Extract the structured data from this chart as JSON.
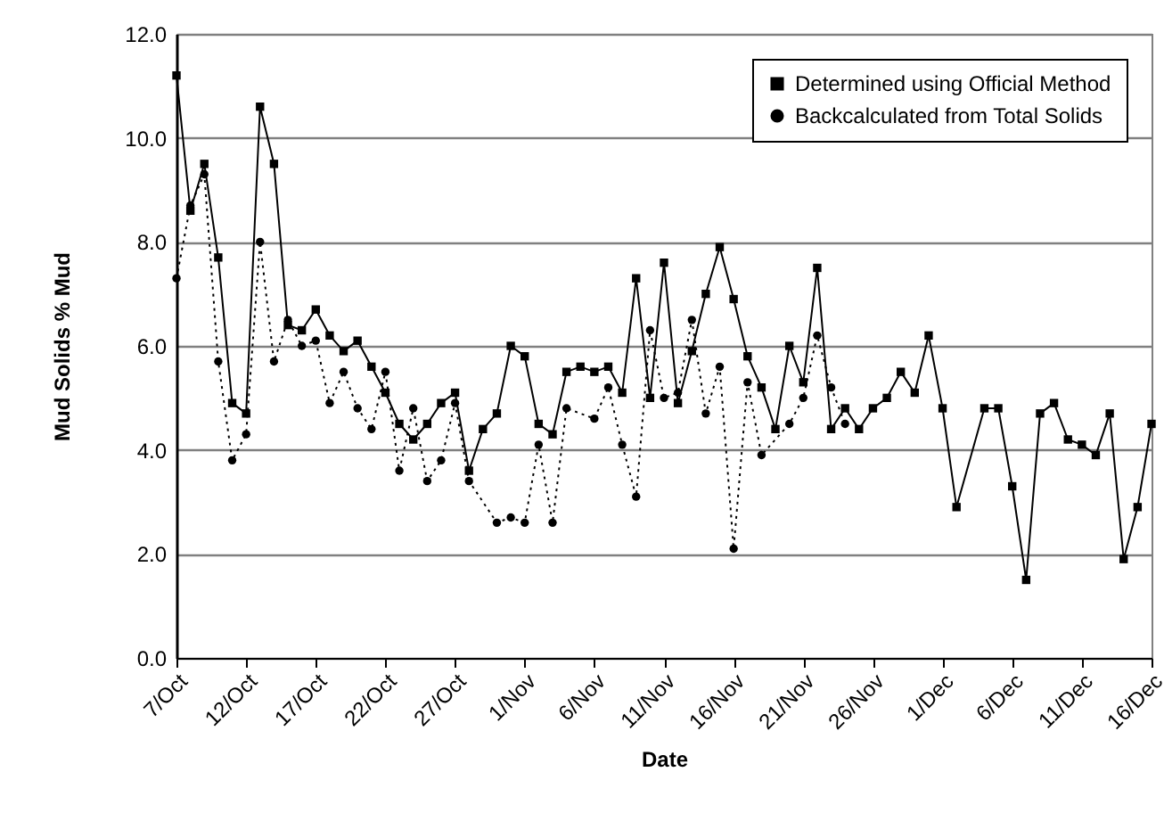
{
  "chart_data": {
    "type": "line",
    "xlabel": "Date",
    "ylabel": "Mud Solids % Mud",
    "xlim": [
      "--10-07",
      "--12-16"
    ],
    "xticks": [
      {
        "value": "--10-07",
        "label": "7/Oct"
      },
      {
        "value": "--10-12",
        "label": "12/Oct"
      },
      {
        "value": "--10-17",
        "label": "17/Oct"
      },
      {
        "value": "--10-22",
        "label": "22/Oct"
      },
      {
        "value": "--10-27",
        "label": "27/Oct"
      },
      {
        "value": "--11-01",
        "label": "1/Nov"
      },
      {
        "value": "--11-06",
        "label": "6/Nov"
      },
      {
        "value": "--11-11",
        "label": "11/Nov"
      },
      {
        "value": "--11-16",
        "label": "16/Nov"
      },
      {
        "value": "--11-21",
        "label": "21/Nov"
      },
      {
        "value": "--11-26",
        "label": "26/Nov"
      },
      {
        "value": "--12-01",
        "label": "1/Dec"
      },
      {
        "value": "--12-06",
        "label": "6/Dec"
      },
      {
        "value": "--12-11",
        "label": "11/Dec"
      },
      {
        "value": "--12-16",
        "label": "16/Dec"
      }
    ],
    "ylim": [
      0,
      12
    ],
    "yticks": [
      {
        "value": 0,
        "label": "0.0"
      },
      {
        "value": 2,
        "label": "2.0"
      },
      {
        "value": 4,
        "label": "4.0"
      },
      {
        "value": 6,
        "label": "6.0"
      },
      {
        "value": 8,
        "label": "8.0"
      },
      {
        "value": 10,
        "label": "10.0"
      },
      {
        "value": 12,
        "label": "12.0"
      }
    ],
    "grid": "y",
    "legend": "top right",
    "series": [
      {
        "name": "Determined using Official Method",
        "color": "#000000",
        "marker": "square",
        "line_style": "solid",
        "x": [
          "--10-07",
          "--10-08",
          "--10-09",
          "--10-10",
          "--10-11",
          "--10-12",
          "--10-13",
          "--10-14",
          "--10-15",
          "--10-16",
          "--10-17",
          "--10-18",
          "--10-19",
          "--10-20",
          "--10-21",
          "--10-22",
          "--10-23",
          "--10-24",
          "--10-25",
          "--10-26",
          "--10-27",
          "--10-28",
          "--10-29",
          "--10-30",
          "--10-31",
          "--11-01",
          "--11-02",
          "--11-03",
          "--11-04",
          "--11-05",
          "--11-06",
          "--11-07",
          "--11-08",
          "--11-09",
          "--11-10",
          "--11-11",
          "--11-12",
          "--11-13",
          "--11-14",
          "--11-15",
          "--11-16",
          "--11-17",
          "--11-18",
          "--11-19",
          "--11-20",
          "--11-21",
          "--11-22",
          "--11-23",
          "--11-24",
          "--11-25",
          "--11-26",
          "--11-27",
          "--11-28",
          "--11-29",
          "--11-30",
          "--12-01",
          "--12-02",
          "--12-04",
          "--12-05",
          "--12-06",
          "--12-07",
          "--12-08",
          "--12-09",
          "--12-10",
          "--12-11",
          "--12-12",
          "--12-13",
          "--12-14",
          "--12-15",
          "--12-16"
        ],
        "values": [
          11.2,
          8.6,
          9.5,
          7.7,
          4.9,
          4.7,
          10.6,
          9.5,
          6.4,
          6.3,
          6.7,
          6.2,
          5.9,
          6.1,
          5.6,
          5.1,
          4.5,
          4.2,
          4.5,
          4.9,
          5.1,
          3.6,
          4.4,
          4.7,
          6.0,
          5.8,
          4.5,
          4.3,
          5.5,
          5.6,
          5.5,
          5.6,
          5.1,
          7.3,
          5.0,
          7.6,
          4.9,
          5.9,
          7.0,
          7.9,
          6.9,
          5.8,
          5.2,
          4.4,
          6.0,
          5.3,
          7.5,
          4.4,
          4.8,
          4.4,
          4.8,
          5.0,
          5.5,
          5.1,
          6.2,
          4.8,
          2.9,
          4.8,
          4.8,
          3.3,
          1.5,
          4.7,
          4.9,
          4.2,
          4.1,
          3.9,
          4.7,
          1.9,
          2.9,
          4.5
        ]
      },
      {
        "name": "Backcalculated from Total Solids",
        "color": "#000000",
        "marker": "circle",
        "line_style": "dotted",
        "x": [
          "--10-07",
          "--10-08",
          "--10-09",
          "--10-10",
          "--10-11",
          "--10-12",
          "--10-13",
          "--10-14",
          "--10-15",
          "--10-16",
          "--10-17",
          "--10-18",
          "--10-19",
          "--10-20",
          "--10-21",
          "--10-22",
          "--10-23",
          "--10-24",
          "--10-25",
          "--10-26",
          "--10-27",
          "--10-28",
          "--10-30",
          "--10-31",
          "--11-01",
          "--11-02",
          "--11-03",
          "--11-04",
          "--11-06",
          "--11-07",
          "--11-08",
          "--11-09",
          "--11-10",
          "--11-11",
          "--11-12",
          "--11-13",
          "--11-14",
          "--11-15",
          "--11-16",
          "--11-17",
          "--11-18",
          "--11-20",
          "--11-21",
          "--11-22",
          "--11-23",
          "--11-24"
        ],
        "values": [
          7.3,
          8.7,
          9.3,
          5.7,
          3.8,
          4.3,
          8.0,
          5.7,
          6.5,
          6.0,
          6.1,
          4.9,
          5.5,
          4.8,
          4.4,
          5.5,
          3.6,
          4.8,
          3.4,
          3.8,
          4.9,
          3.4,
          2.6,
          2.7,
          2.6,
          4.1,
          2.6,
          4.8,
          4.6,
          5.2,
          4.1,
          3.1,
          6.3,
          5.0,
          5.1,
          6.5,
          4.7,
          5.6,
          2.1,
          5.3,
          3.9,
          4.5,
          5.0,
          6.2,
          5.2,
          4.5
        ]
      }
    ]
  }
}
